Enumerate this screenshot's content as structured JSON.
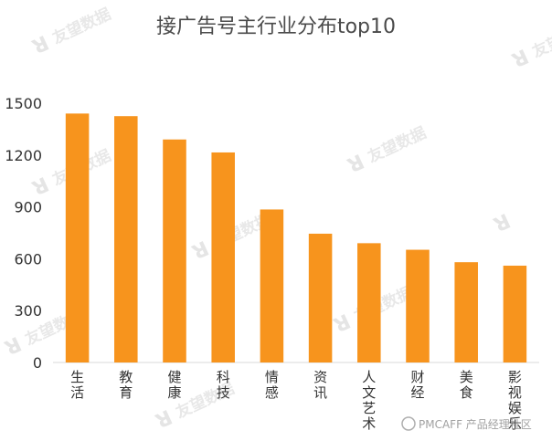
{
  "chart_data": {
    "type": "bar",
    "title": "接广告号主行业分布top10",
    "categories": [
      "生活",
      "教育",
      "健康",
      "科技",
      "情感",
      "资讯",
      "人文艺术",
      "财经",
      "美食",
      "影视娱乐"
    ],
    "values": [
      1440,
      1425,
      1290,
      1215,
      885,
      745,
      690,
      652,
      580,
      560
    ],
    "yticks": [
      0,
      300,
      600,
      900,
      1200,
      1500
    ],
    "ylim": [
      0,
      1500
    ],
    "grid": false,
    "legend": "none",
    "bar_color": "#f7941d"
  },
  "watermark": {
    "brand": "友望数据",
    "credit": "PMCAFF 产品经理社区"
  }
}
